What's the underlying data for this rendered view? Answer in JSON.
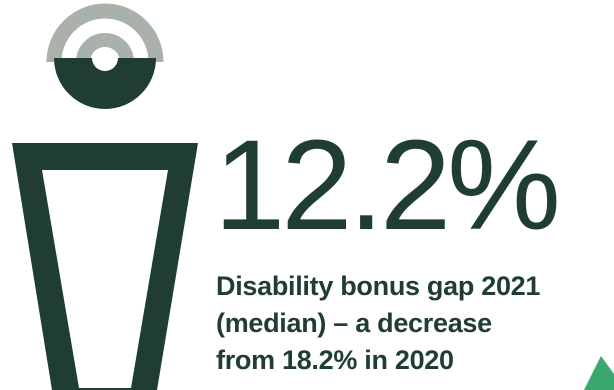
{
  "stat": {
    "value": "12.2%",
    "caption_lines": [
      "Disability bonus gap 2021",
      "(median) – a decrease",
      "from 18.2% in 2020"
    ]
  },
  "colors": {
    "primary": "#1f3d32",
    "ring": "#a9b1ab",
    "accent": "#3aa76d",
    "background": "#ffffff"
  },
  "icons": {
    "figure": "person-icon",
    "corner": "triangle-accent"
  }
}
